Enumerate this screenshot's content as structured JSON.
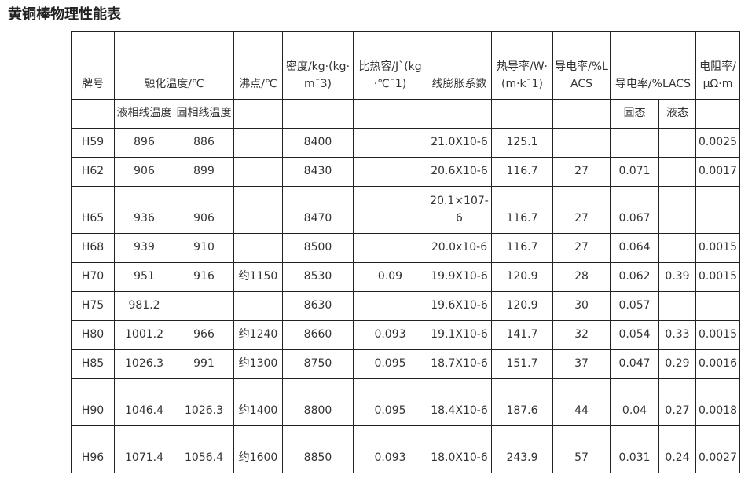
{
  "title": "黄铜棒物理性能表",
  "header": {
    "grade": "牌号",
    "melting": "融化温度/℃",
    "boiling": "沸点/℃",
    "density": "密度/kg·(kg·m¯3)",
    "specific_heat": "比热容/J`(kg·℃¯1)",
    "expansion": "线膨胀系数",
    "thermal_cond": "热导率/W·(m·k¯1)",
    "conductivity": "导电率/%LACS",
    "conductivity2": "导电率/%LACS",
    "resistivity": "电阻率/μΩ·m",
    "liquidus": "液相线温度",
    "solidus": "固相线温度",
    "solid": "固态",
    "liquid": "液态"
  },
  "rows": [
    [
      "H59",
      "896",
      "886",
      "",
      "8400",
      "",
      "21.0X10-6",
      "125.1",
      "",
      "",
      "",
      "0.0025"
    ],
    [
      "H62",
      "906",
      "899",
      "",
      "8430",
      "",
      "20.6X10-6",
      "116.7",
      "27",
      "0.071",
      "",
      "0.0017"
    ],
    [
      "H65",
      "936",
      "906",
      "",
      "8470",
      "",
      "20.1×107-6",
      "116.7",
      "27",
      "0.067",
      "",
      ""
    ],
    [
      "H68",
      "939",
      "910",
      "",
      "8500",
      "",
      "20.0x10-6",
      "116.7",
      "27",
      "0.064",
      "",
      "0.0015"
    ],
    [
      "H70",
      "951",
      "916",
      "约1150",
      "8530",
      "0.09",
      "19.9X10-6",
      "120.9",
      "28",
      "0.062",
      "0.39",
      "0.0015"
    ],
    [
      "H75",
      "981.2",
      "",
      "",
      "8630",
      "",
      "19.6X10-6",
      "120.9",
      "30",
      "0.057",
      "",
      ""
    ],
    [
      "H80",
      "1001.2",
      "966",
      "约1240",
      "8660",
      "0.093",
      "19.1X10-6",
      "141.7",
      "32",
      "0.054",
      "0.33",
      "0.0015"
    ],
    [
      "H85",
      "1026.3",
      "991",
      "约1300",
      "8750",
      "0.095",
      "18.7X10-6",
      "151.7",
      "37",
      "0.047",
      "0.29",
      "0.0016"
    ],
    [
      "H90",
      "1046.4",
      "1026.3",
      "约1400",
      "8800",
      "0.095",
      "18.4X10-6",
      "187.6",
      "44",
      "0.04",
      "0.27",
      "0.0018"
    ],
    [
      "H96",
      "1071.4",
      "1056.4",
      "约1600",
      "8850",
      "0.093",
      "18.0X10-6",
      "243.9",
      "57",
      "0.031",
      "0.24",
      "0.0027"
    ]
  ]
}
